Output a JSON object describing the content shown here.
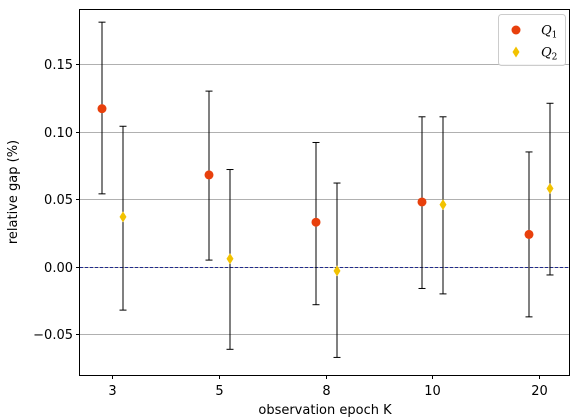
{
  "chart_data": {
    "type": "scatter",
    "xlabel": "observation epoch K",
    "ylabel": "relative gap (%)",
    "categories": [
      "3",
      "5",
      "8",
      "10",
      "20"
    ],
    "ylim": [
      -0.08,
      0.19
    ],
    "yticks": [
      -0.05,
      0.0,
      0.05,
      0.1,
      0.15
    ],
    "ytick_labels": [
      "−0.05",
      "0.00",
      "0.05",
      "0.10",
      "0.15"
    ],
    "grid": "horizontal",
    "reference_line": 0.0,
    "legend_position": "top-right",
    "series": [
      {
        "name": "Q1",
        "legend_base": "Q",
        "legend_sub": "1",
        "marker": "circle",
        "color": "#e8400c",
        "values": [
          0.117,
          0.068,
          0.033,
          0.048,
          0.024
        ],
        "err_low": [
          0.054,
          0.005,
          -0.028,
          -0.016,
          -0.037
        ],
        "err_high": [
          0.181,
          0.13,
          0.092,
          0.111,
          0.085
        ]
      },
      {
        "name": "Q2",
        "legend_base": "Q",
        "legend_sub": "2",
        "marker": "diamond",
        "color": "#f2c200",
        "values": [
          0.037,
          0.006,
          -0.003,
          0.046,
          0.058
        ],
        "err_low": [
          -0.032,
          -0.061,
          -0.067,
          -0.02,
          -0.006
        ],
        "err_high": [
          0.104,
          0.072,
          0.062,
          0.111,
          0.121
        ]
      }
    ]
  }
}
